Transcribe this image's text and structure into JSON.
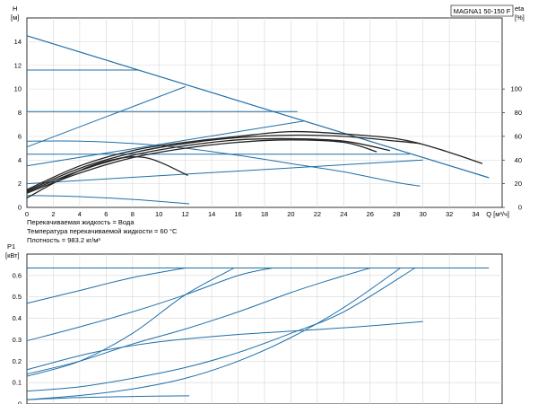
{
  "chart_data": [
    {
      "type": "line",
      "title": "MAGNA1 50-150 F",
      "xlabel": "Q [м³/ч]",
      "ylabel": "H [м]",
      "y2label": "eta [%]",
      "xlim": [
        0,
        36
      ],
      "ylim": [
        0,
        16
      ],
      "y2lim": [
        0,
        160
      ],
      "xticks": [
        0,
        2,
        4,
        6,
        8,
        10,
        12,
        14,
        16,
        18,
        20,
        22,
        24,
        26,
        28,
        30,
        32,
        34
      ],
      "yticks": [
        0,
        2,
        4,
        6,
        8,
        10,
        12,
        14
      ],
      "y2ticks": [
        0,
        20,
        40,
        60,
        80,
        100
      ],
      "grid": true,
      "series": [
        {
          "kind": "boundary",
          "color": "#1f6fa8",
          "x": [
            0,
            35
          ],
          "y": [
            14.5,
            2.5
          ]
        },
        {
          "kind": "constant-head",
          "color": "#1f6fa8",
          "x": [
            0,
            8.5
          ],
          "y": [
            11.6,
            11.6
          ]
        },
        {
          "kind": "constant-head",
          "color": "#1f6fa8",
          "x": [
            0,
            20.5
          ],
          "y": [
            8.1,
            8.1
          ]
        },
        {
          "kind": "constant-head",
          "color": "#1f6fa8",
          "x": [
            0,
            29
          ],
          "y": [
            4.5,
            4.5
          ]
        },
        {
          "kind": "proportional",
          "color": "#1f6fa8",
          "x": [
            0,
            12
          ],
          "y": [
            5.1,
            10.2
          ]
        },
        {
          "kind": "proportional",
          "color": "#1f6fa8",
          "x": [
            0,
            21
          ],
          "y": [
            3.5,
            7.3
          ]
        },
        {
          "kind": "proportional",
          "color": "#1f6fa8",
          "x": [
            0,
            30
          ],
          "y": [
            2.0,
            4.0
          ]
        },
        {
          "kind": "constant-curve",
          "color": "#1f6fa8",
          "x": [
            0,
            4,
            8,
            12,
            16,
            20,
            24,
            28,
            29.8
          ],
          "y": [
            5.6,
            5.6,
            5.4,
            5.0,
            4.4,
            3.7,
            3.0,
            2.1,
            1.8
          ]
        },
        {
          "kind": "constant-curve",
          "color": "#1f6fa8",
          "x": [
            0,
            3,
            6,
            9,
            12.3
          ],
          "y": [
            1.0,
            0.95,
            0.8,
            0.6,
            0.3
          ]
        },
        {
          "kind": "efficiency",
          "color": "#222222",
          "x": [
            0,
            4,
            8,
            12,
            16,
            20,
            24,
            28,
            31,
            34.5
          ],
          "y": [
            1.5,
            3.5,
            4.8,
            5.5,
            6.0,
            6.4,
            6.2,
            5.8,
            5.0,
            3.7
          ]
        },
        {
          "kind": "efficiency",
          "color": "#222222",
          "x": [
            0,
            4,
            8,
            12,
            16,
            20,
            24,
            28,
            29.8
          ],
          "y": [
            1.4,
            3.3,
            4.6,
            5.4,
            5.9,
            6.1,
            6.0,
            5.6,
            5.4
          ]
        },
        {
          "kind": "efficiency",
          "color": "#222222",
          "x": [
            0,
            4,
            8,
            12,
            16,
            20,
            24,
            27.5
          ],
          "y": [
            1.3,
            3.1,
            4.4,
            5.2,
            5.7,
            5.8,
            5.6,
            4.8
          ]
        },
        {
          "kind": "efficiency",
          "color": "#222222",
          "x": [
            0,
            4,
            8,
            12,
            16,
            20,
            24,
            26.5
          ],
          "y": [
            1.2,
            2.9,
            4.2,
            5.0,
            5.5,
            5.7,
            5.5,
            4.7
          ]
        },
        {
          "kind": "efficiency",
          "color": "#222222",
          "x": [
            0,
            3,
            6,
            9,
            12.2
          ],
          "y": [
            0.8,
            2.6,
            3.9,
            4.2,
            2.7
          ]
        }
      ]
    },
    {
      "type": "line",
      "ylabel": "P1 [кВт]",
      "xlim": [
        0,
        36
      ],
      "ylim": [
        0,
        0.7
      ],
      "yticks": [
        0,
        0.1,
        0.2,
        0.3,
        0.4,
        0.5,
        0.6
      ],
      "grid": true,
      "series": [
        {
          "color": "#1f6fa8",
          "x": [
            0,
            35
          ],
          "y": [
            0.635,
            0.635
          ]
        },
        {
          "color": "#1f6fa8",
          "x": [
            0,
            4,
            8,
            12
          ],
          "y": [
            0.47,
            0.53,
            0.59,
            0.635
          ]
        },
        {
          "color": "#1f6fa8",
          "x": [
            0,
            4,
            8,
            12,
            16,
            18.6
          ],
          "y": [
            0.295,
            0.36,
            0.43,
            0.51,
            0.6,
            0.635
          ]
        },
        {
          "color": "#1f6fa8",
          "x": [
            0,
            4,
            8,
            12,
            15.7
          ],
          "y": [
            0.13,
            0.2,
            0.33,
            0.51,
            0.635
          ]
        },
        {
          "color": "#1f6fa8",
          "x": [
            0,
            4,
            8,
            12,
            16,
            20,
            23,
            26
          ],
          "y": [
            0.14,
            0.2,
            0.28,
            0.35,
            0.43,
            0.52,
            0.58,
            0.635
          ]
        },
        {
          "color": "#1f6fa8",
          "x": [
            0,
            4,
            8,
            12,
            16,
            20,
            24,
            29.4
          ],
          "y": [
            0.06,
            0.08,
            0.12,
            0.17,
            0.24,
            0.33,
            0.43,
            0.635
          ]
        },
        {
          "color": "#1f6fa8",
          "x": [
            0,
            4,
            8,
            12,
            16,
            20,
            24,
            28.3
          ],
          "y": [
            0.02,
            0.04,
            0.07,
            0.12,
            0.2,
            0.31,
            0.45,
            0.635
          ]
        },
        {
          "color": "#1f6fa8",
          "x": [
            0,
            5,
            10,
            15,
            20,
            25,
            30
          ],
          "y": [
            0.16,
            0.24,
            0.29,
            0.32,
            0.34,
            0.36,
            0.385
          ]
        },
        {
          "color": "#1f6fa8",
          "x": [
            0,
            4,
            8,
            12.3
          ],
          "y": [
            0.02,
            0.03,
            0.035,
            0.038
          ]
        }
      ]
    }
  ],
  "info_lines": [
    "Перекачиваемая жидкость = Вода",
    "Температура перекачиваемой жидкости = 60 °C",
    "Плотность = 983.2 кг/м³"
  ]
}
